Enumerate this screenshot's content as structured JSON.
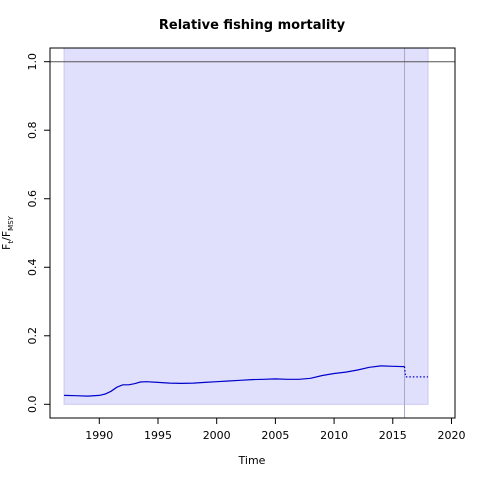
{
  "chart_data": {
    "type": "line",
    "title": "Relative fishing mortality",
    "xlabel": "Time",
    "ylabel": {
      "main": "F",
      "sub1": "t",
      "sep": "/F",
      "sub2": "MSY"
    },
    "xlim": [
      1985.8,
      2020.3
    ],
    "ylim": [
      -0.04,
      1.04
    ],
    "x_ticks": [
      1990,
      1995,
      2000,
      2005,
      2010,
      2015,
      2020
    ],
    "y_ticks": [
      0.0,
      0.2,
      0.4,
      0.6,
      0.8,
      1.0
    ],
    "reference_line": 1.0,
    "band": {
      "x": [
        1987,
        2018
      ],
      "y": [
        0.0,
        1.04
      ],
      "color": "#e0e0fc"
    },
    "vline_x": 2016,
    "series": [
      {
        "style": "solid",
        "color": "#0000cc",
        "x": [
          1987,
          1988,
          1989,
          1990,
          1990.5,
          1991,
          1991.5,
          1992,
          1992.5,
          1993,
          1993.5,
          1994,
          1995,
          1996,
          1997,
          1998,
          1999,
          2000,
          2001,
          2002,
          2003,
          2004,
          2005,
          2006,
          2007,
          2008,
          2009,
          2010,
          2011,
          2012,
          2013,
          2014,
          2015,
          2016
        ],
        "y": [
          0.026,
          0.025,
          0.024,
          0.026,
          0.03,
          0.038,
          0.05,
          0.057,
          0.057,
          0.06,
          0.065,
          0.066,
          0.064,
          0.062,
          0.061,
          0.062,
          0.064,
          0.066,
          0.068,
          0.07,
          0.072,
          0.073,
          0.074,
          0.073,
          0.073,
          0.076,
          0.084,
          0.09,
          0.094,
          0.1,
          0.108,
          0.112,
          0.111,
          0.11
        ]
      },
      {
        "style": "dotted",
        "color": "#0000cc",
        "x": [
          2016,
          2016.1,
          2018
        ],
        "y": [
          0.11,
          0.08,
          0.08
        ]
      }
    ],
    "colors": {
      "line": "#0000cc",
      "band": "#e0e0fc",
      "band_edge": "#c8c8f0",
      "vline": "#a8a8c8",
      "refline": "#555555"
    }
  }
}
